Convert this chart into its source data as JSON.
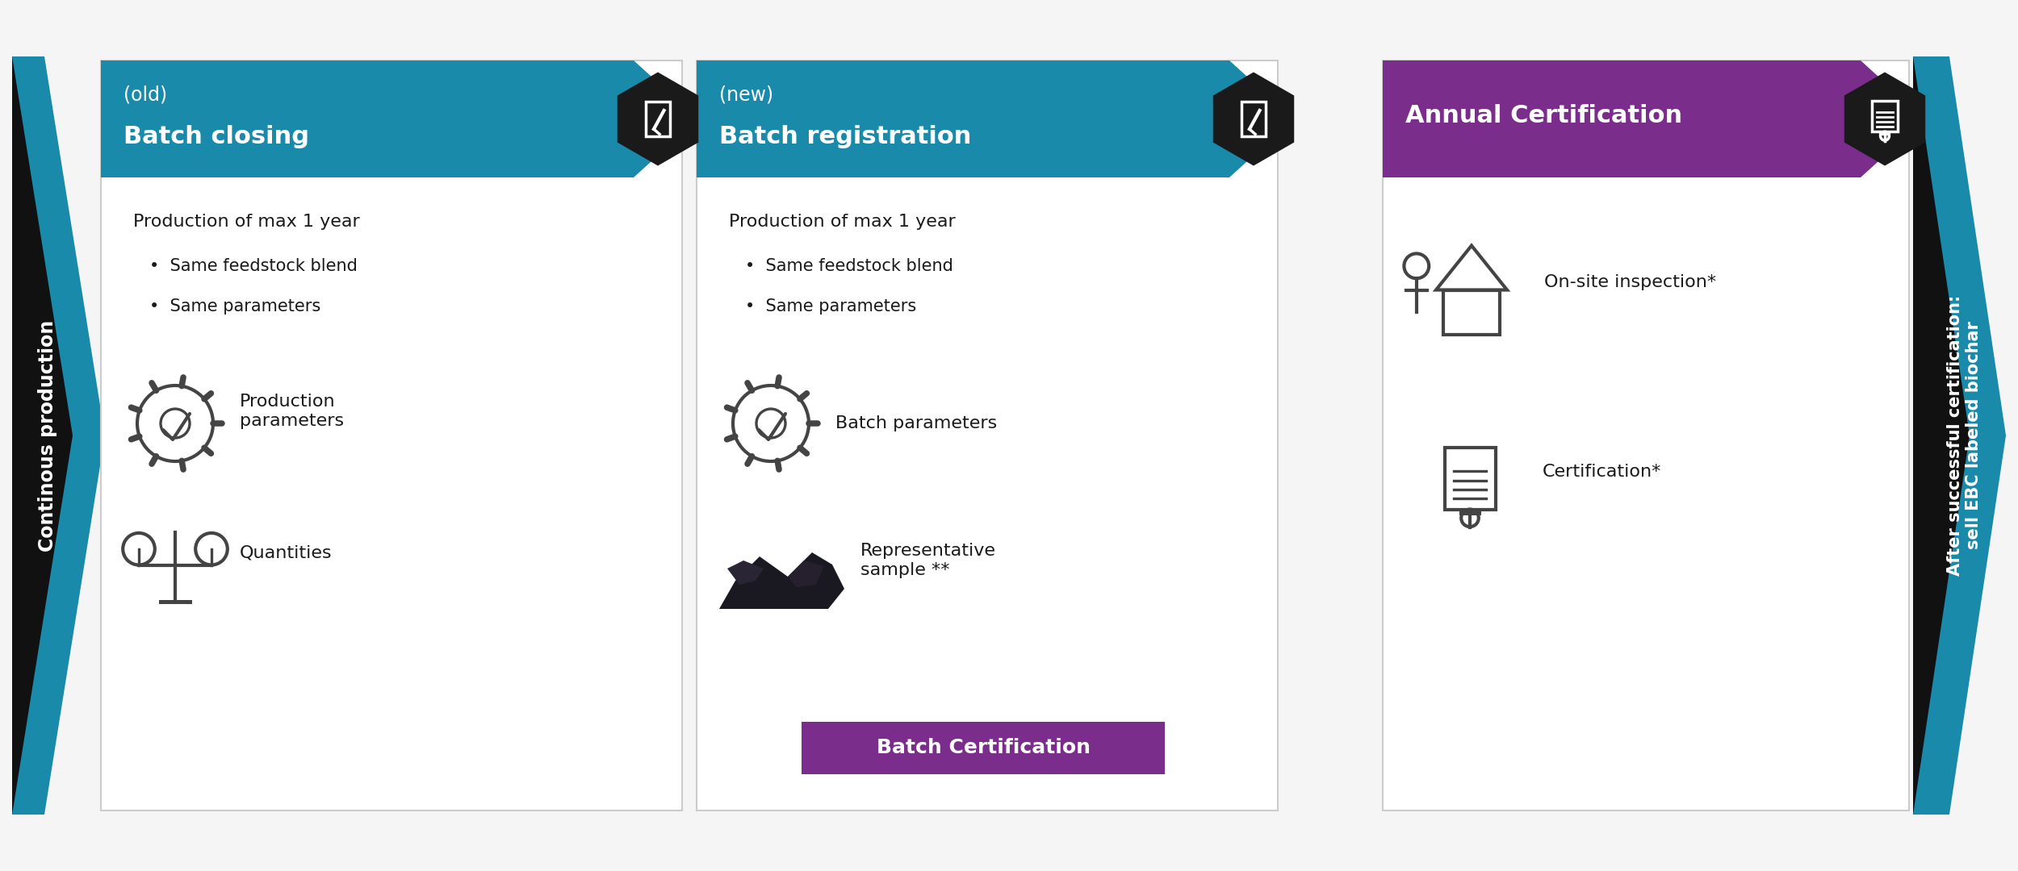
{
  "bg_color": "#f5f5f5",
  "teal": "#1a8aaa",
  "teal_dark": "#156e8a",
  "purple": "#7b2d8b",
  "black": "#111111",
  "near_black": "#1a1a1a",
  "white": "#ffffff",
  "gray_text": "#333333",
  "icon_gray": "#444444",
  "left_arrow_label": "Continous production",
  "right_arrow_label": "After successful certification:\nsell EBC labeled biochar",
  "box1_tag": "(old)",
  "box1_title": "Batch closing",
  "box1_text1": "Production of max 1 year",
  "box1_bullet1": "Same feedstock blend",
  "box1_bullet2": "Same parameters",
  "box1_item1_label": "Production\nparameters",
  "box1_item2_label": "Quantities",
  "box2_tag": "(new)",
  "box2_title": "Batch registration",
  "box2_text1": "Production of max 1 year",
  "box2_bullet1": "Same feedstock blend",
  "box2_bullet2": "Same parameters",
  "box2_item1_label": "Batch parameters",
  "box2_item2_label": "Representative\nsample **",
  "box2_button": "Batch Certification",
  "box3_title": "Annual Certification",
  "box3_item1_label": "On-site inspection*",
  "box3_item2_label": "Certification*"
}
